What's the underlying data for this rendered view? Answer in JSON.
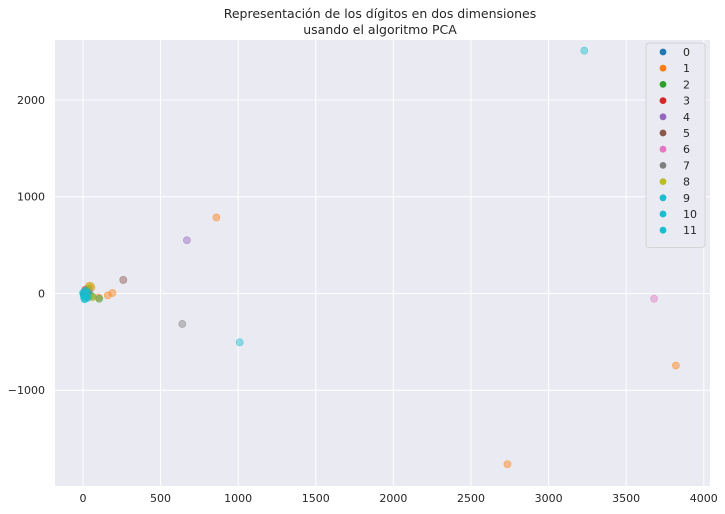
{
  "chart_data": {
    "type": "scatter",
    "title_line1": "Representación de los dígitos en dos dimensiones",
    "title_line2": "usando el algoritmo PCA",
    "xlabel": "",
    "ylabel": "",
    "xlim": [
      -180,
      4040
    ],
    "ylim": [
      -1990,
      2620
    ],
    "xticks": [
      0,
      500,
      1000,
      1500,
      2000,
      2500,
      3000,
      3500,
      4000
    ],
    "yticks": [
      -1000,
      0,
      1000,
      2000
    ],
    "grid": true,
    "legend_position": "top-right",
    "background": "#eaeaf2",
    "series": [
      {
        "name": "0",
        "color": "#1f77b4",
        "points": [
          [
            10,
            5
          ],
          [
            15,
            -10
          ],
          [
            5,
            0
          ],
          [
            20,
            10
          ],
          [
            8,
            -5
          ],
          [
            12,
            15
          ]
        ]
      },
      {
        "name": "1",
        "color": "#ff7f0e",
        "points": [
          [
            860,
            785
          ],
          [
            3820,
            -745
          ],
          [
            2735,
            -1765
          ],
          [
            190,
            5
          ],
          [
            160,
            -20
          ],
          [
            100,
            -40
          ],
          [
            40,
            80
          ],
          [
            55,
            60
          ]
        ]
      },
      {
        "name": "2",
        "color": "#2ca02c",
        "points": [
          [
            20,
            30
          ],
          [
            35,
            50
          ],
          [
            60,
            -30
          ],
          [
            105,
            -55
          ],
          [
            45,
            -20
          ]
        ]
      },
      {
        "name": "3",
        "color": "#d62728",
        "points": [
          [
            25,
            -15
          ],
          [
            30,
            20
          ],
          [
            15,
            40
          ]
        ]
      },
      {
        "name": "4",
        "color": "#9467bd",
        "points": [
          [
            670,
            550
          ],
          [
            20,
            -40
          ],
          [
            30,
            0
          ]
        ]
      },
      {
        "name": "5",
        "color": "#8c564b",
        "points": [
          [
            260,
            140
          ],
          [
            25,
            25
          ],
          [
            10,
            -20
          ]
        ]
      },
      {
        "name": "6",
        "color": "#e377c2",
        "points": [
          [
            3680,
            -55
          ],
          [
            15,
            10
          ]
        ]
      },
      {
        "name": "7",
        "color": "#7f7f7f",
        "points": [
          [
            640,
            -315
          ],
          [
            30,
            -10
          ],
          [
            40,
            30
          ]
        ]
      },
      {
        "name": "8",
        "color": "#bcbd22",
        "points": [
          [
            50,
            80
          ],
          [
            35,
            55
          ],
          [
            60,
            -40
          ]
        ]
      },
      {
        "name": "9",
        "color": "#17becf",
        "points": [
          [
            3230,
            2510
          ],
          [
            1010,
            -505
          ],
          [
            20,
            -50
          ],
          [
            10,
            -60
          ],
          [
            30,
            -45
          ]
        ]
      },
      {
        "name": "10",
        "color": "#17becf",
        "points": [
          [
            5,
            -10
          ],
          [
            15,
            -30
          ],
          [
            25,
            -20
          ],
          [
            10,
            20
          ],
          [
            0,
            5
          ]
        ]
      },
      {
        "name": "11",
        "color": "#17becf",
        "points": [
          [
            20,
            0
          ],
          [
            30,
            10
          ],
          [
            5,
            -35
          ],
          [
            12,
            -55
          ],
          [
            18,
            30
          ]
        ]
      }
    ]
  }
}
